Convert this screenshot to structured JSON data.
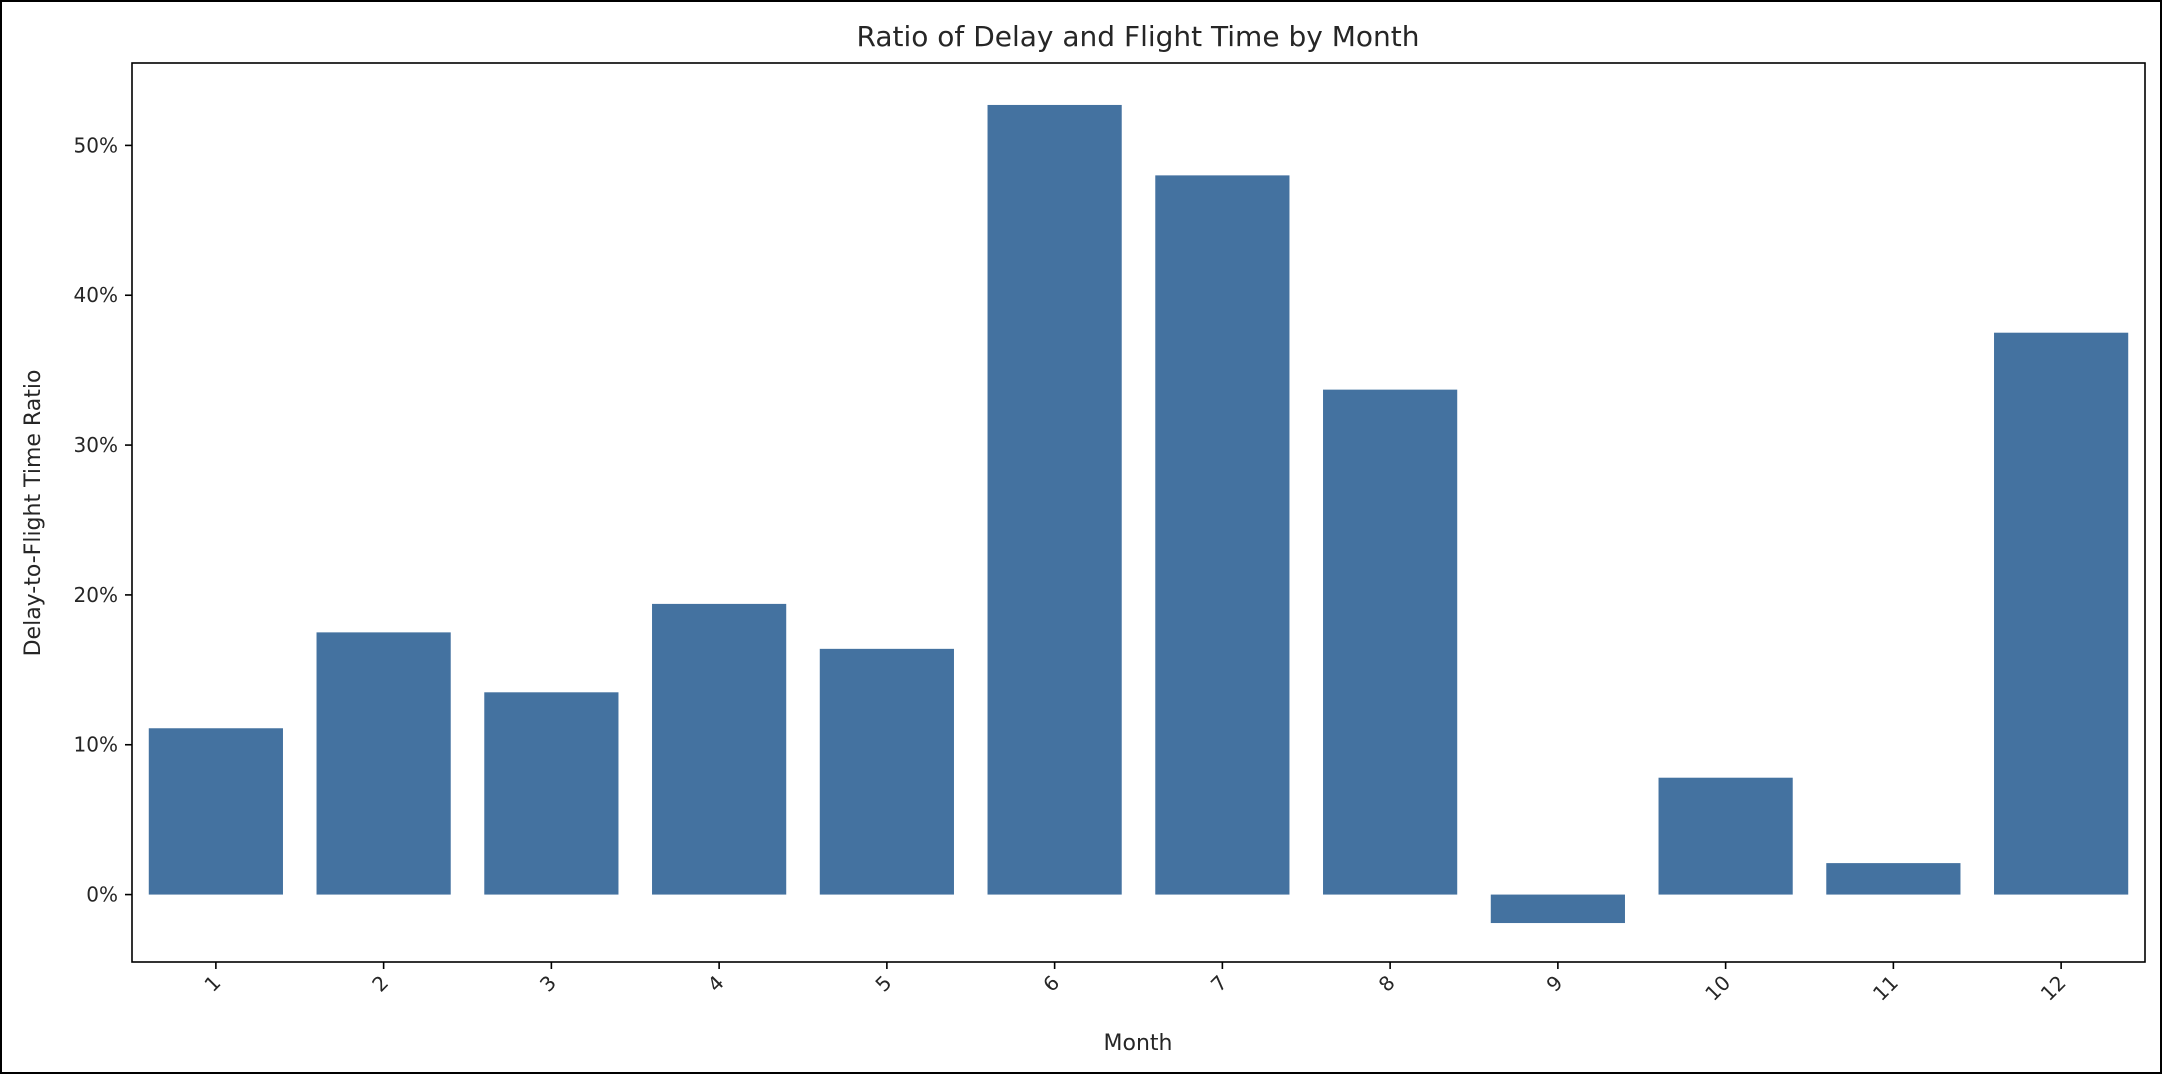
{
  "chart_data": {
    "type": "bar",
    "title": "Ratio of Delay and Flight Time by Month",
    "xlabel": "Month",
    "ylabel": "Delay-to-Flight Time Ratio",
    "categories": [
      "1",
      "2",
      "3",
      "4",
      "5",
      "6",
      "7",
      "8",
      "9",
      "10",
      "11",
      "12"
    ],
    "values": [
      0.111,
      0.175,
      0.135,
      0.194,
      0.164,
      0.527,
      0.48,
      0.337,
      -0.019,
      0.078,
      0.021,
      0.375
    ],
    "ylim": [
      -0.045,
      0.555
    ],
    "yticks": [
      0,
      0.1,
      0.2,
      0.3,
      0.4,
      0.5
    ],
    "ytick_labels": [
      "0%",
      "10%",
      "20%",
      "30%",
      "40%",
      "50%"
    ],
    "xtick_rotation_deg": 45,
    "grid": false,
    "legend": "none",
    "bar_color": "#4472a0"
  }
}
